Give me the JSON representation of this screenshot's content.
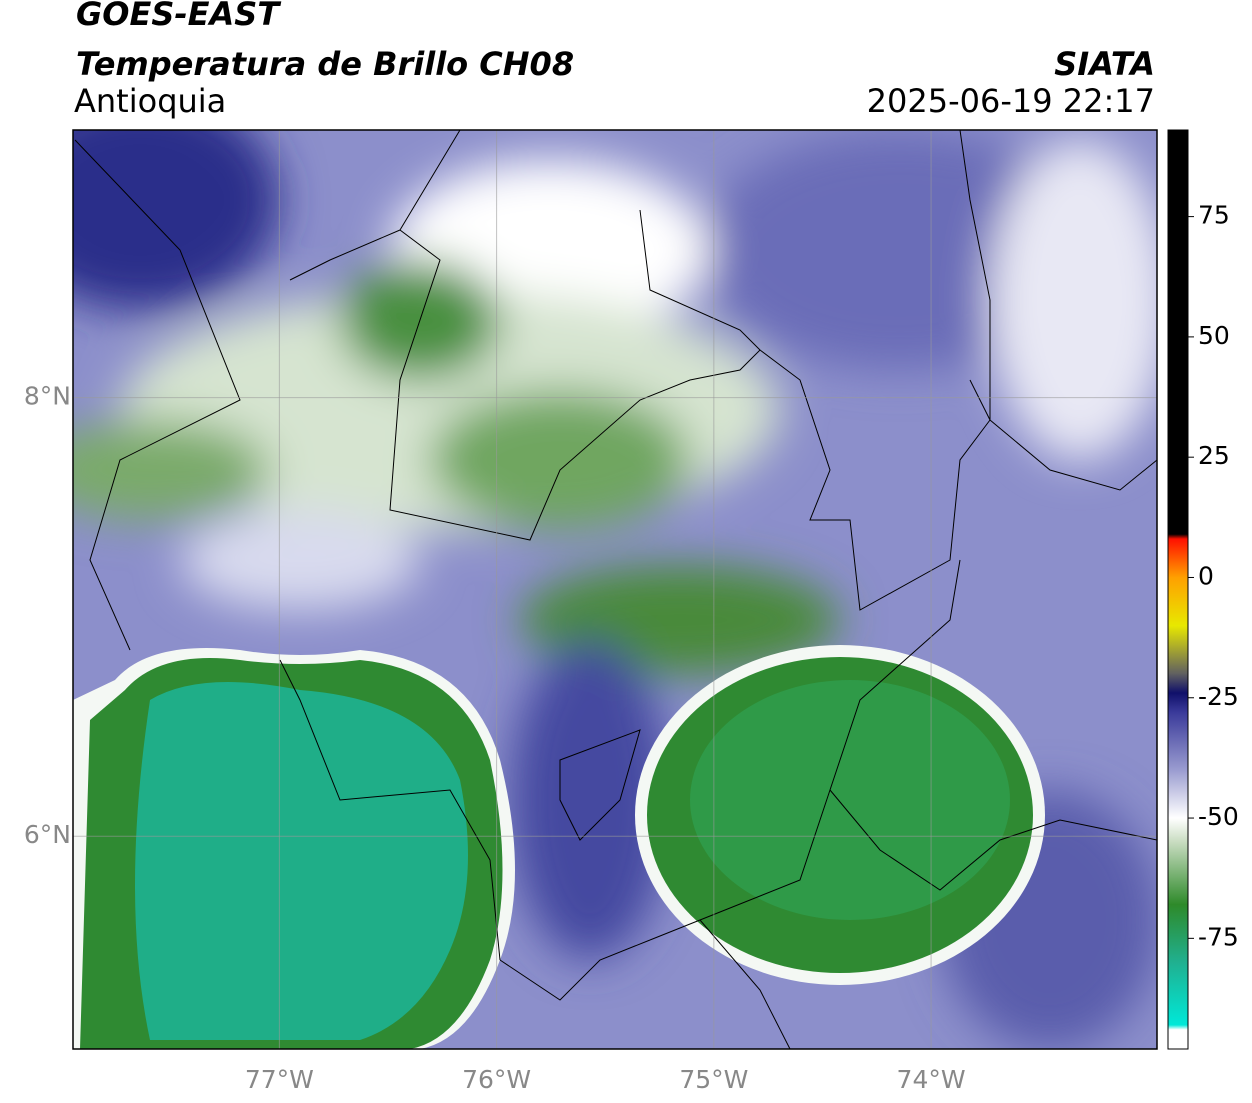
{
  "header": {
    "title": "GOES-EAST",
    "subtitle": "Temperatura de Brillo CH08",
    "region": "Antioquia",
    "source": "SIATA",
    "datetime": "2025-06-19 22:17"
  },
  "map": {
    "xlim": [
      -77.95,
      -72.96
    ],
    "ylim": [
      5.03,
      9.22
    ],
    "lon_ticks": [
      {
        "value": -77,
        "label": "77°W"
      },
      {
        "value": -76,
        "label": "76°W"
      },
      {
        "value": -75,
        "label": "75°W"
      },
      {
        "value": -74,
        "label": "74°W"
      }
    ],
    "lat_ticks": [
      {
        "value": 8,
        "label": "8°N"
      },
      {
        "value": 6,
        "label": "6°N"
      }
    ],
    "grid": true
  },
  "colorbar": {
    "lim": [
      -98,
      93
    ],
    "ticks": [
      75,
      50,
      25,
      0,
      -25,
      -50,
      -75
    ],
    "colormap": [
      {
        "value": -98,
        "color": "#ffffff"
      },
      {
        "value": -94,
        "color": "#ffffff"
      },
      {
        "value": -93,
        "color": "#00e8d8"
      },
      {
        "value": -80,
        "color": "#20b090"
      },
      {
        "value": -68,
        "color": "#2e8a2a"
      },
      {
        "value": -55,
        "color": "#c8dcc0"
      },
      {
        "value": -50,
        "color": "#ffffff"
      },
      {
        "value": -40,
        "color": "#9a9cd0"
      },
      {
        "value": -28,
        "color": "#3a3a9a"
      },
      {
        "value": -24,
        "color": "#10106a"
      },
      {
        "value": -20,
        "color": "#606060"
      },
      {
        "value": -10,
        "color": "#e8e800"
      },
      {
        "value": 0,
        "color": "#ffa000"
      },
      {
        "value": 8,
        "color": "#ff1000"
      },
      {
        "value": 9,
        "color": "#000000"
      },
      {
        "value": 93,
        "color": "#000000"
      }
    ]
  }
}
